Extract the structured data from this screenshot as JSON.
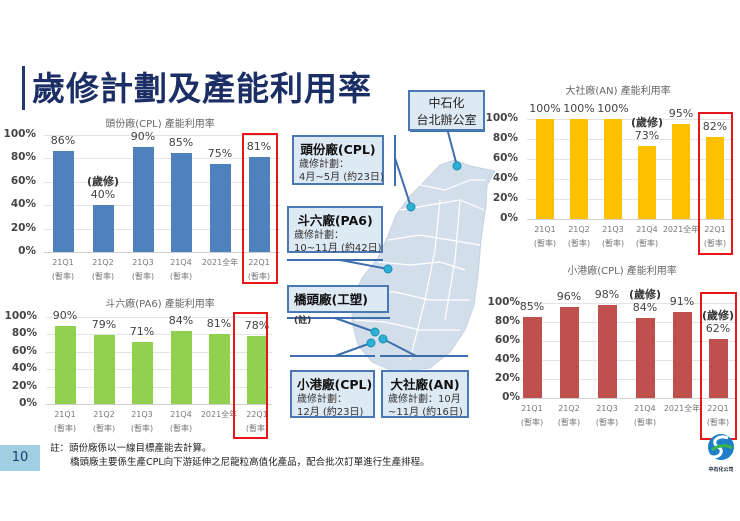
{
  "page": {
    "title": "歲修計劃及產能利用率",
    "page_number": "10",
    "footnote_lines": [
      "註：頭份廠係以一線目標產能去計算。",
      "橋頭廠主要係生產CPL向下游延伸之尼龍粒高值化產品，配合批次訂單進行生產排程。"
    ],
    "logo_text": "中石化公司"
  },
  "map_boxes": {
    "taipei": {
      "line1": "中石化",
      "line2": "台北辦公室"
    },
    "toufen": {
      "name": "頭份廠(CPL)",
      "plan_label": "歲修計劃：",
      "plan": "4月~5月 (約23日)"
    },
    "douliu": {
      "name": "斗六廠(PA6)",
      "plan_label": "歲修計劃：",
      "plan": "10~11月 (約42日)"
    },
    "qiaotou": {
      "name": "橋頭廠(工塑)",
      "note": "(註)"
    },
    "xiaogang": {
      "name": "小港廠(CPL)",
      "plan_label": "歲修計劃：",
      "plan": "12月 (約23日)"
    },
    "dashe": {
      "name": "大社廠(AN)",
      "plan_label": "歲修計劃：10月",
      "plan": "~11月 (約16日)"
    }
  },
  "chart_data": [
    {
      "id": "toufen",
      "type": "bar",
      "title": "頭份廠(CPL) 產能利用率",
      "categories": [
        [
          "21Q1",
          "(暫率)"
        ],
        [
          "21Q2",
          "(暫率)"
        ],
        [
          "21Q3",
          "(暫率)"
        ],
        [
          "21Q4",
          "(暫率)"
        ],
        [
          "2021全年",
          ""
        ],
        [
          "22Q1",
          "(暫率)"
        ]
      ],
      "values": [
        86,
        40,
        90,
        85,
        75,
        81
      ],
      "value_labels": [
        "86%",
        "40%",
        "90%",
        "85%",
        "75%",
        "81%"
      ],
      "annotations": [
        "",
        "(歲修)",
        "",
        "",
        "",
        ""
      ],
      "yticks": [
        "0%",
        "20%",
        "40%",
        "60%",
        "80%",
        "100%"
      ],
      "ylim": [
        0,
        100
      ],
      "color": "#4f81bd",
      "highlight_index": 5,
      "grid": true
    },
    {
      "id": "douliu",
      "type": "bar",
      "title": "斗六廠(PA6) 產能利用率",
      "categories": [
        [
          "21Q1",
          "(暫率)"
        ],
        [
          "21Q2",
          "(暫率)"
        ],
        [
          "21Q3",
          "(暫率)"
        ],
        [
          "21Q4",
          "(暫率)"
        ],
        [
          "2021全年",
          ""
        ],
        [
          "22Q1",
          "(暫率)"
        ]
      ],
      "values": [
        90,
        79,
        71,
        84,
        81,
        78
      ],
      "value_labels": [
        "90%",
        "79%",
        "71%",
        "84%",
        "81%",
        "78%"
      ],
      "annotations": [
        "",
        "",
        "",
        "",
        "",
        ""
      ],
      "yticks": [
        "0%",
        "20%",
        "40%",
        "60%",
        "80%",
        "100%"
      ],
      "ylim": [
        0,
        100
      ],
      "color": "#92d050",
      "highlight_index": 5,
      "grid": true
    },
    {
      "id": "dashe",
      "type": "bar",
      "title": "大社廠(AN) 產能利用率",
      "categories": [
        [
          "21Q1",
          "(暫率)"
        ],
        [
          "21Q2",
          "(暫率)"
        ],
        [
          "21Q3",
          "(暫率)"
        ],
        [
          "21Q4",
          "(暫率)"
        ],
        [
          "2021全年",
          ""
        ],
        [
          "22Q1",
          "(暫率)"
        ]
      ],
      "values": [
        100,
        100,
        100,
        73,
        95,
        82
      ],
      "value_labels": [
        "100%",
        "100%",
        "100%",
        "73%",
        "95%",
        "82%"
      ],
      "annotations": [
        "",
        "",
        "",
        "(歲修)",
        "",
        ""
      ],
      "yticks": [
        "0%",
        "20%",
        "40%",
        "60%",
        "80%",
        "100%"
      ],
      "ylim": [
        0,
        100
      ],
      "color": "#ffc000",
      "highlight_index": 5,
      "grid": true
    },
    {
      "id": "xiaogang",
      "type": "bar",
      "title": "小港廠(CPL) 產能利用率",
      "categories": [
        [
          "21Q1",
          "(暫率)"
        ],
        [
          "21Q2",
          "(暫率)"
        ],
        [
          "21Q3",
          "(暫率)"
        ],
        [
          "21Q4",
          "(暫率)"
        ],
        [
          "2021全年",
          ""
        ],
        [
          "22Q1",
          "(暫率)"
        ]
      ],
      "values": [
        85,
        96,
        98,
        84,
        91,
        62
      ],
      "value_labels": [
        "85%",
        "96%",
        "98%",
        "84%",
        "91%",
        "62%"
      ],
      "annotations": [
        "",
        "",
        "",
        "(歲修)",
        "",
        "(歲修)"
      ],
      "yticks": [
        "0%",
        "20%",
        "40%",
        "60%",
        "80%",
        "100%"
      ],
      "ylim": [
        0,
        100
      ],
      "color": "#c0504d",
      "highlight_index": 5,
      "grid": true
    }
  ]
}
